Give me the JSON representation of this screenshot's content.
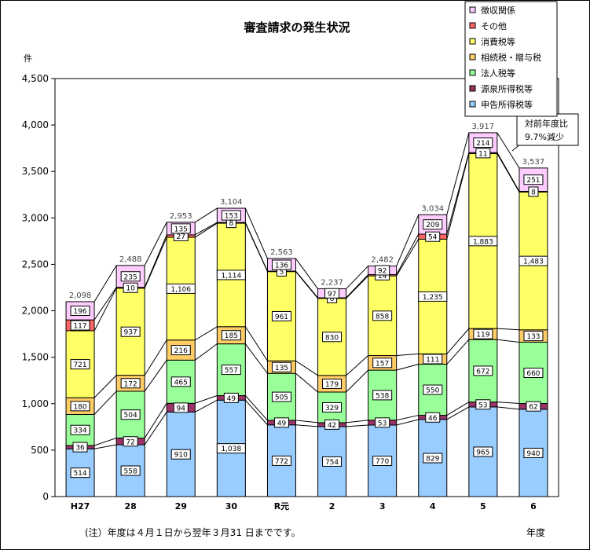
{
  "chart_data": {
    "type": "bar",
    "title": "審査請求の発生状況",
    "ylabel": "件",
    "xlabel": "年度",
    "ylim": [
      0,
      4500
    ],
    "yticks": [
      "0",
      "500",
      "1,000",
      "1,500",
      "2,000",
      "2,500",
      "3,000",
      "3,500",
      "4,000",
      "4,500"
    ],
    "grid": false,
    "legend_position": "top-right",
    "categories": [
      "H27",
      "28",
      "29",
      "30",
      "R元",
      "2",
      "3",
      "4",
      "5",
      "6"
    ],
    "series": [
      {
        "name": "申告所得税等",
        "color": "#99ccff",
        "values": [
          514,
          558,
          910,
          1038,
          772,
          754,
          770,
          829,
          965,
          940
        ]
      },
      {
        "name": "源泉所得税等",
        "color": "#993366",
        "values": [
          36,
          72,
          94,
          49,
          49,
          42,
          53,
          46,
          53,
          62
        ]
      },
      {
        "name": "法人税等",
        "color": "#99ff99",
        "values": [
          334,
          504,
          465,
          557,
          505,
          329,
          538,
          550,
          672,
          660
        ]
      },
      {
        "name": "相続税・贈与税",
        "color": "#ffcc66",
        "values": [
          180,
          172,
          216,
          185,
          135,
          179,
          157,
          111,
          119,
          133
        ]
      },
      {
        "name": "消費税等",
        "color": "#ffff66",
        "values": [
          721,
          937,
          1106,
          1114,
          961,
          830,
          858,
          1235,
          1883,
          1483
        ]
      },
      {
        "name": "その他",
        "color": "#ff6666",
        "values": [
          117,
          10,
          27,
          8,
          5,
          6,
          14,
          54,
          11,
          8
        ]
      },
      {
        "name": "徴収関係",
        "color": "#ffccff",
        "values": [
          196,
          235,
          135,
          153,
          136,
          97,
          92,
          209,
          214,
          251
        ]
      }
    ],
    "value_labels": [
      [
        "514",
        "558",
        "910",
        "1,038",
        "772",
        "754",
        "770",
        "829",
        "965",
        "940"
      ],
      [
        "36",
        "72",
        "94",
        "49",
        "49",
        "42",
        "53",
        "46",
        "53",
        "62"
      ],
      [
        "334",
        "504",
        "465",
        "557",
        "505",
        "329",
        "538",
        "550",
        "672",
        "660"
      ],
      [
        "180",
        "172",
        "216",
        "185",
        "135",
        "179",
        "157",
        "111",
        "119",
        "133"
      ],
      [
        "721",
        "937",
        "1,106",
        "1,114",
        "961",
        "830",
        "858",
        "1,235",
        "1,883",
        "1,483"
      ],
      [
        "117",
        "10",
        "27",
        "8",
        "5",
        "6",
        "14",
        "54",
        "11",
        "8"
      ],
      [
        "196",
        "235",
        "135",
        "153",
        "136",
        "97",
        "92",
        "209",
        "214",
        "251"
      ]
    ],
    "totals": [
      2098,
      2488,
      2953,
      3104,
      2563,
      2237,
      2482,
      3034,
      3917,
      3537
    ],
    "total_labels": [
      "2,098",
      "2,488",
      "2,953",
      "3,104",
      "2,563",
      "2,237",
      "2,482",
      "3,034",
      "3,917",
      "3,537"
    ],
    "annotation": {
      "line1": "対前年度比",
      "line2": "9.7%減少"
    },
    "note": "(注）年度は４月１日から翌年３月31 日までです。"
  }
}
